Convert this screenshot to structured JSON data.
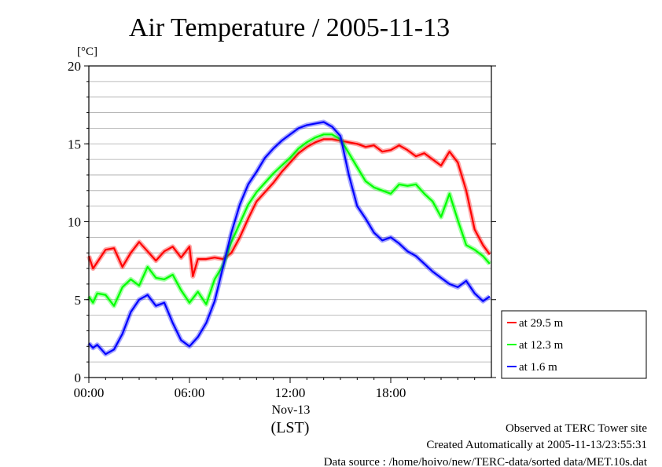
{
  "chart_data": {
    "type": "line",
    "title": "Air Temperature / 2005-11-13",
    "ylabel": "[°C]",
    "xlabel": "(LST)",
    "date_label": "Nov-13",
    "ylim": [
      0,
      20
    ],
    "yticks": [
      "0",
      "5",
      "10",
      "15",
      "20"
    ],
    "xlim": [
      0,
      24
    ],
    "xticks": [
      {
        "x": 0,
        "label": "00:00"
      },
      {
        "x": 6,
        "label": "06:00"
      },
      {
        "x": 12,
        "label": "12:00"
      },
      {
        "x": 18,
        "label": "18:00"
      }
    ],
    "grid": true,
    "legend_position": "right-bottom, outside",
    "series": [
      {
        "name": "at 29.5 m",
        "color": "#ff0000",
        "x": [
          0,
          0.25,
          0.5,
          1,
          1.5,
          2,
          2.5,
          3,
          3.5,
          4,
          4.5,
          5,
          5.5,
          6,
          6.2,
          6.5,
          7,
          7.5,
          8,
          8.5,
          9,
          9.5,
          10,
          10.5,
          11,
          11.5,
          12,
          12.5,
          13,
          13.5,
          14,
          14.5,
          15,
          15.5,
          16,
          16.5,
          17,
          17.5,
          18,
          18.5,
          19,
          19.5,
          20,
          20.5,
          21,
          21.5,
          22,
          22.5,
          23,
          23.5,
          23.9
        ],
        "y": [
          7.8,
          7.0,
          7.4,
          8.2,
          8.3,
          7.1,
          8.0,
          8.7,
          8.1,
          7.5,
          8.1,
          8.4,
          7.7,
          8.4,
          6.5,
          7.6,
          7.6,
          7.7,
          7.6,
          8.0,
          9.0,
          10.2,
          11.3,
          11.9,
          12.5,
          13.2,
          13.8,
          14.4,
          14.8,
          15.1,
          15.3,
          15.3,
          15.2,
          15.1,
          15.0,
          14.8,
          14.9,
          14.5,
          14.6,
          14.9,
          14.6,
          14.2,
          14.4,
          14.0,
          13.6,
          14.5,
          13.8,
          12.0,
          9.5,
          8.5,
          7.9
        ]
      },
      {
        "name": "at 12.3 m",
        "color": "#00ff00",
        "x": [
          0,
          0.25,
          0.5,
          1,
          1.5,
          2,
          2.5,
          3,
          3.5,
          4,
          4.5,
          5,
          5.5,
          6,
          6.5,
          7,
          7.5,
          8,
          8.5,
          9,
          9.5,
          10,
          10.5,
          11,
          11.5,
          12,
          12.5,
          13,
          13.5,
          14,
          14.5,
          15,
          15.5,
          16,
          16.5,
          17,
          17.5,
          18,
          18.5,
          19,
          19.5,
          20,
          20.5,
          21,
          21.5,
          22,
          22.5,
          23,
          23.5,
          23.9
        ],
        "y": [
          5.2,
          4.8,
          5.4,
          5.3,
          4.6,
          5.8,
          6.3,
          5.9,
          7.1,
          6.4,
          6.3,
          6.6,
          5.6,
          4.8,
          5.5,
          4.7,
          6.3,
          7.2,
          8.7,
          9.9,
          11.1,
          11.9,
          12.5,
          13.1,
          13.6,
          14.1,
          14.7,
          15.1,
          15.4,
          15.6,
          15.6,
          15.3,
          14.4,
          13.5,
          12.6,
          12.2,
          12.0,
          11.8,
          12.4,
          12.3,
          12.4,
          11.8,
          11.3,
          10.3,
          11.8,
          10.1,
          8.5,
          8.2,
          7.8,
          7.3
        ]
      },
      {
        "name": "at 1.6 m",
        "color": "#0000ff",
        "x": [
          0,
          0.25,
          0.5,
          1,
          1.5,
          2,
          2.5,
          3,
          3.5,
          4,
          4.5,
          5,
          5.5,
          6,
          6.5,
          7,
          7.5,
          8,
          8.5,
          9,
          9.5,
          10,
          10.5,
          11,
          11.5,
          12,
          12.5,
          13,
          13.5,
          14,
          14.5,
          15,
          15.5,
          16,
          16.5,
          17,
          17.5,
          18,
          18.5,
          19,
          19.5,
          20,
          20.5,
          21,
          21.5,
          22,
          22.5,
          23,
          23.5,
          23.9
        ],
        "y": [
          2.2,
          1.9,
          2.1,
          1.5,
          1.8,
          2.8,
          4.2,
          5.0,
          5.3,
          4.6,
          4.8,
          3.5,
          2.4,
          2.0,
          2.6,
          3.5,
          4.9,
          7.1,
          9.3,
          11.1,
          12.4,
          13.2,
          14.1,
          14.7,
          15.2,
          15.6,
          16.0,
          16.2,
          16.3,
          16.4,
          16.1,
          15.5,
          13.0,
          11.0,
          10.2,
          9.3,
          8.8,
          9.0,
          8.6,
          8.1,
          7.8,
          7.3,
          6.8,
          6.4,
          6.0,
          5.8,
          6.2,
          5.4,
          4.9,
          5.2
        ]
      }
    ]
  },
  "footer": {
    "line1": "Observed at TERC Tower site",
    "line2": "Created Automatically at 2005-11-13/23:55:31",
    "line3": "Data source : /home/hoivo/new/TERC-data/sorted  data/MET.10s.dat"
  }
}
